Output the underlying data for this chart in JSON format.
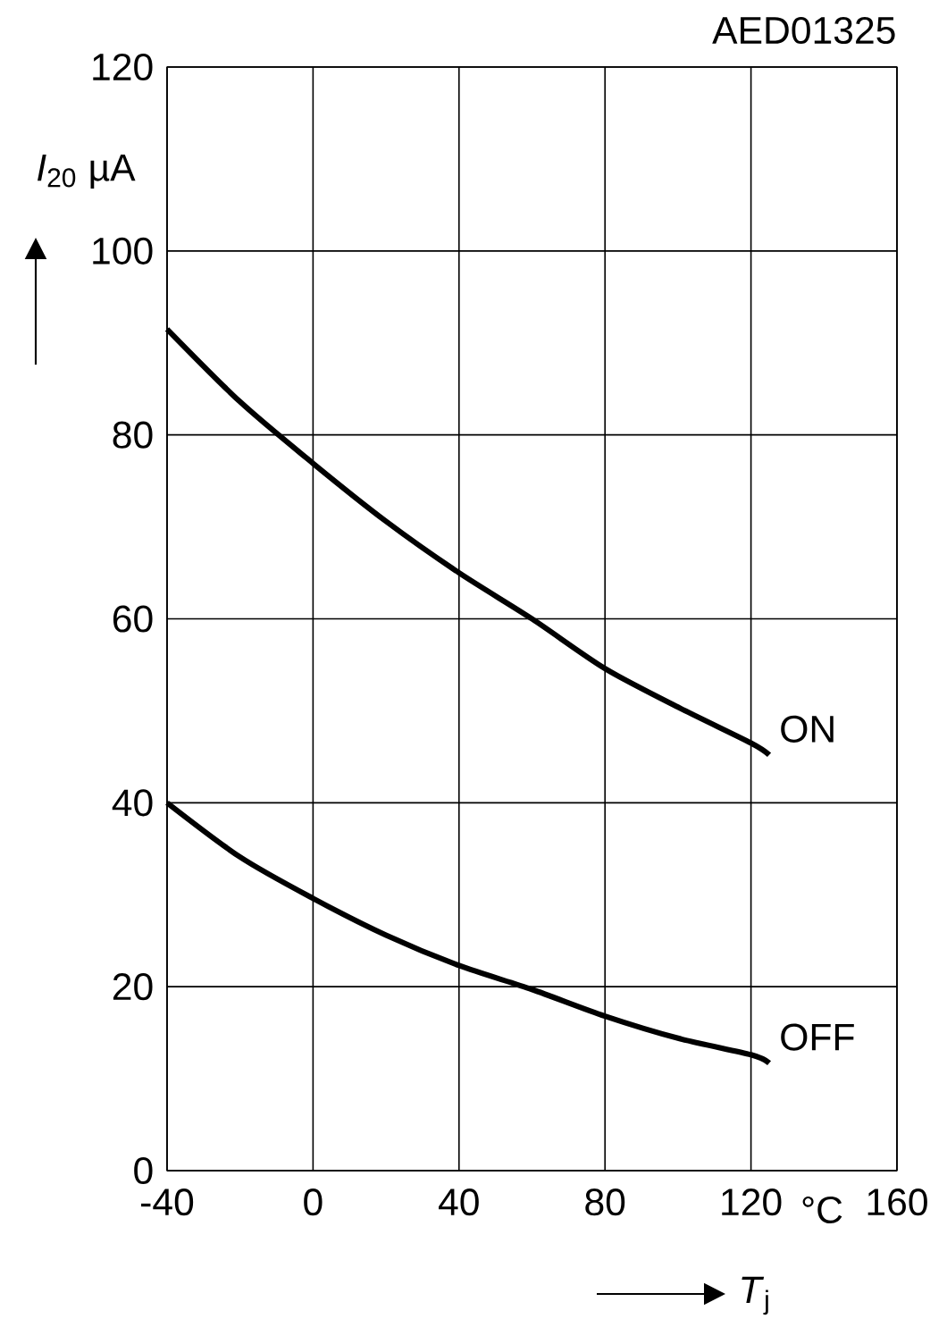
{
  "chart_data": {
    "type": "line",
    "annotations": [
      "AED01325",
      "°C"
    ],
    "xlabel": "*T*$_{j}$",
    "ylabel": "*I*$_{20}$ µA",
    "xlim": [
      -40,
      160
    ],
    "ylim": [
      0,
      120
    ],
    "xticks": [
      -40,
      0,
      40,
      80,
      120,
      160
    ],
    "yticks": [
      0,
      20,
      40,
      60,
      80,
      100,
      120
    ],
    "grid": true,
    "series": [
      {
        "name": "ON",
        "color": "#000000",
        "x": [
          -40,
          -20,
          0,
          20,
          40,
          60,
          80,
          100,
          120,
          125
        ],
        "values": [
          91.5,
          83.6,
          76.9,
          70.6,
          65.0,
          60.0,
          54.6,
          50.4,
          46.5,
          45.2
        ]
      },
      {
        "name": "OFF",
        "color": "#000000",
        "x": [
          -40,
          -20,
          0,
          20,
          40,
          60,
          80,
          100,
          120,
          125
        ],
        "values": [
          40.0,
          34.1,
          29.6,
          25.6,
          22.3,
          19.7,
          16.8,
          14.4,
          12.6,
          11.7
        ]
      }
    ]
  }
}
